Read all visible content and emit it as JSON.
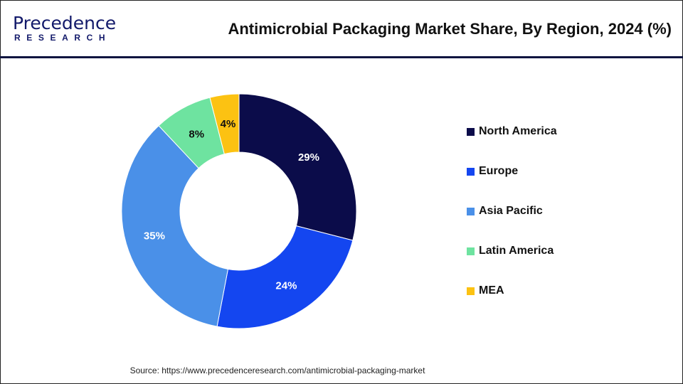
{
  "logo": {
    "top": "Precedence",
    "bottom": "RESEARCH"
  },
  "title": "Antimicrobial Packaging Market Share, By Region, 2024 (%)",
  "source": "Source: https://www.precedenceresearch.com/antimicrobial-packaging-market",
  "chart_data": {
    "type": "pie",
    "donut": true,
    "title": "Antimicrobial Packaging Market Share, By Region, 2024 (%)",
    "categories": [
      "North America",
      "Europe",
      "Asia Pacific",
      "Latin America",
      "MEA"
    ],
    "values": [
      29,
      24,
      35,
      8,
      4
    ],
    "labels": [
      "29%",
      "24%",
      "35%",
      "8%",
      "4%"
    ],
    "colors": [
      "#0b0c4a",
      "#1446f0",
      "#4a90e8",
      "#6ee3a0",
      "#fcc212"
    ],
    "label_colors": [
      "#ffffff",
      "#ffffff",
      "#ffffff",
      "#111111",
      "#111111"
    ],
    "legend": "right"
  }
}
